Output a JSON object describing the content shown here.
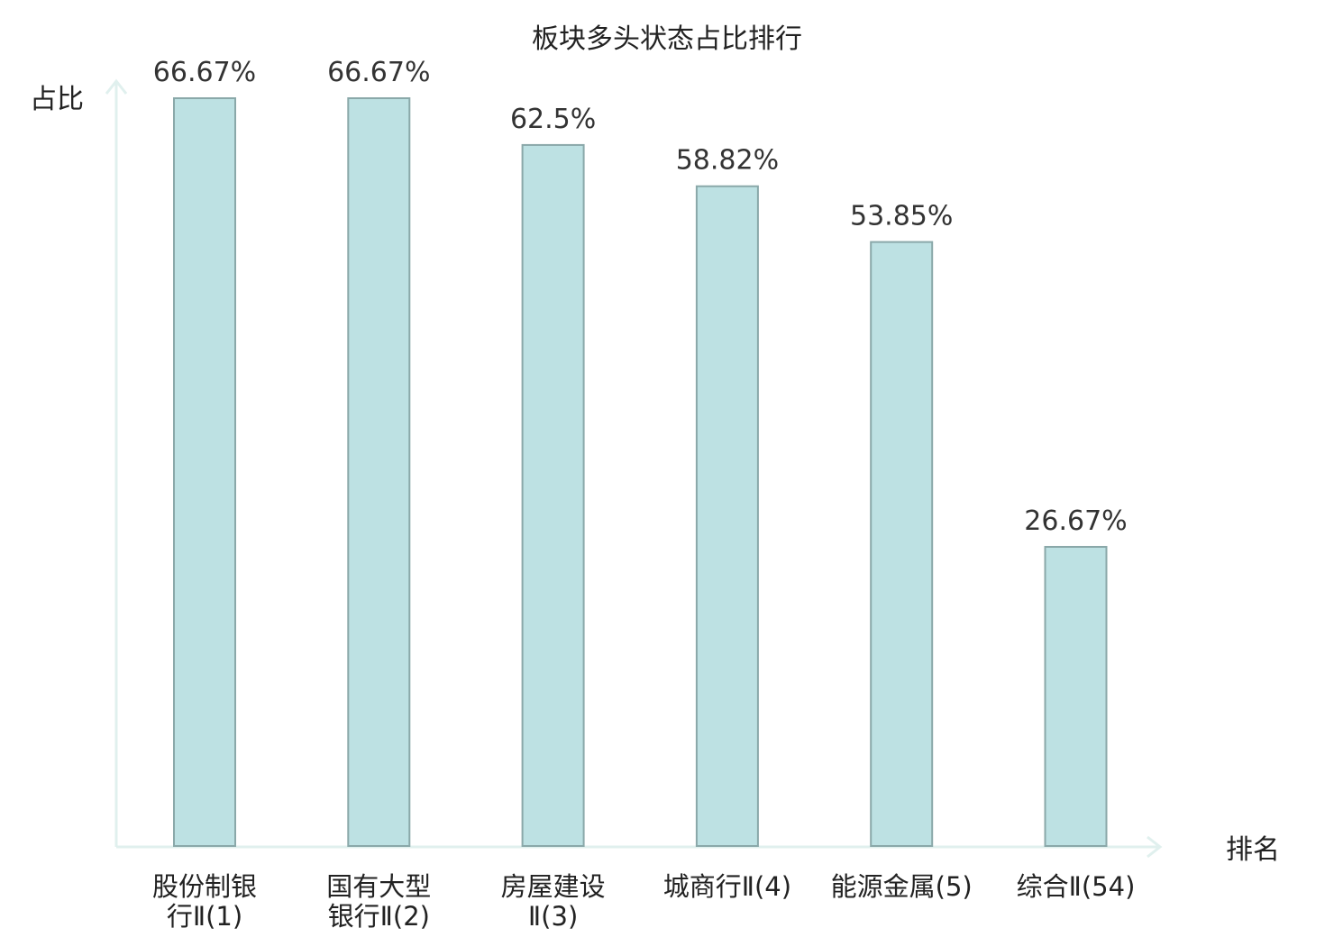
{
  "chart_data": {
    "type": "bar",
    "title": "板块多头状态占比排行",
    "ylabel": "占比",
    "xlabel": "排名",
    "categories": [
      [
        "股份制银",
        "行Ⅱ(1)"
      ],
      [
        "国有大型",
        "银行Ⅱ(2)"
      ],
      [
        "房屋建设",
        "Ⅱ(3)"
      ],
      [
        "城商行Ⅱ(4)"
      ],
      [
        "能源金属(5)"
      ],
      [
        "综合Ⅱ(54)"
      ]
    ],
    "values": [
      66.67,
      66.67,
      62.5,
      58.82,
      53.85,
      26.67
    ],
    "value_labels": [
      "66.67%",
      "66.67%",
      "62.5%",
      "58.82%",
      "53.85%",
      "26.67%"
    ],
    "highlight_index": 5,
    "ylim": [
      0,
      69
    ],
    "grid": false,
    "colors": {
      "bar_fill": "#bde1e3",
      "bar_stroke": "#8aa8a9",
      "axis": "#e0f0ee",
      "text": "#222222",
      "value_text": "#333333",
      "highlight": "#e31a1c"
    }
  }
}
